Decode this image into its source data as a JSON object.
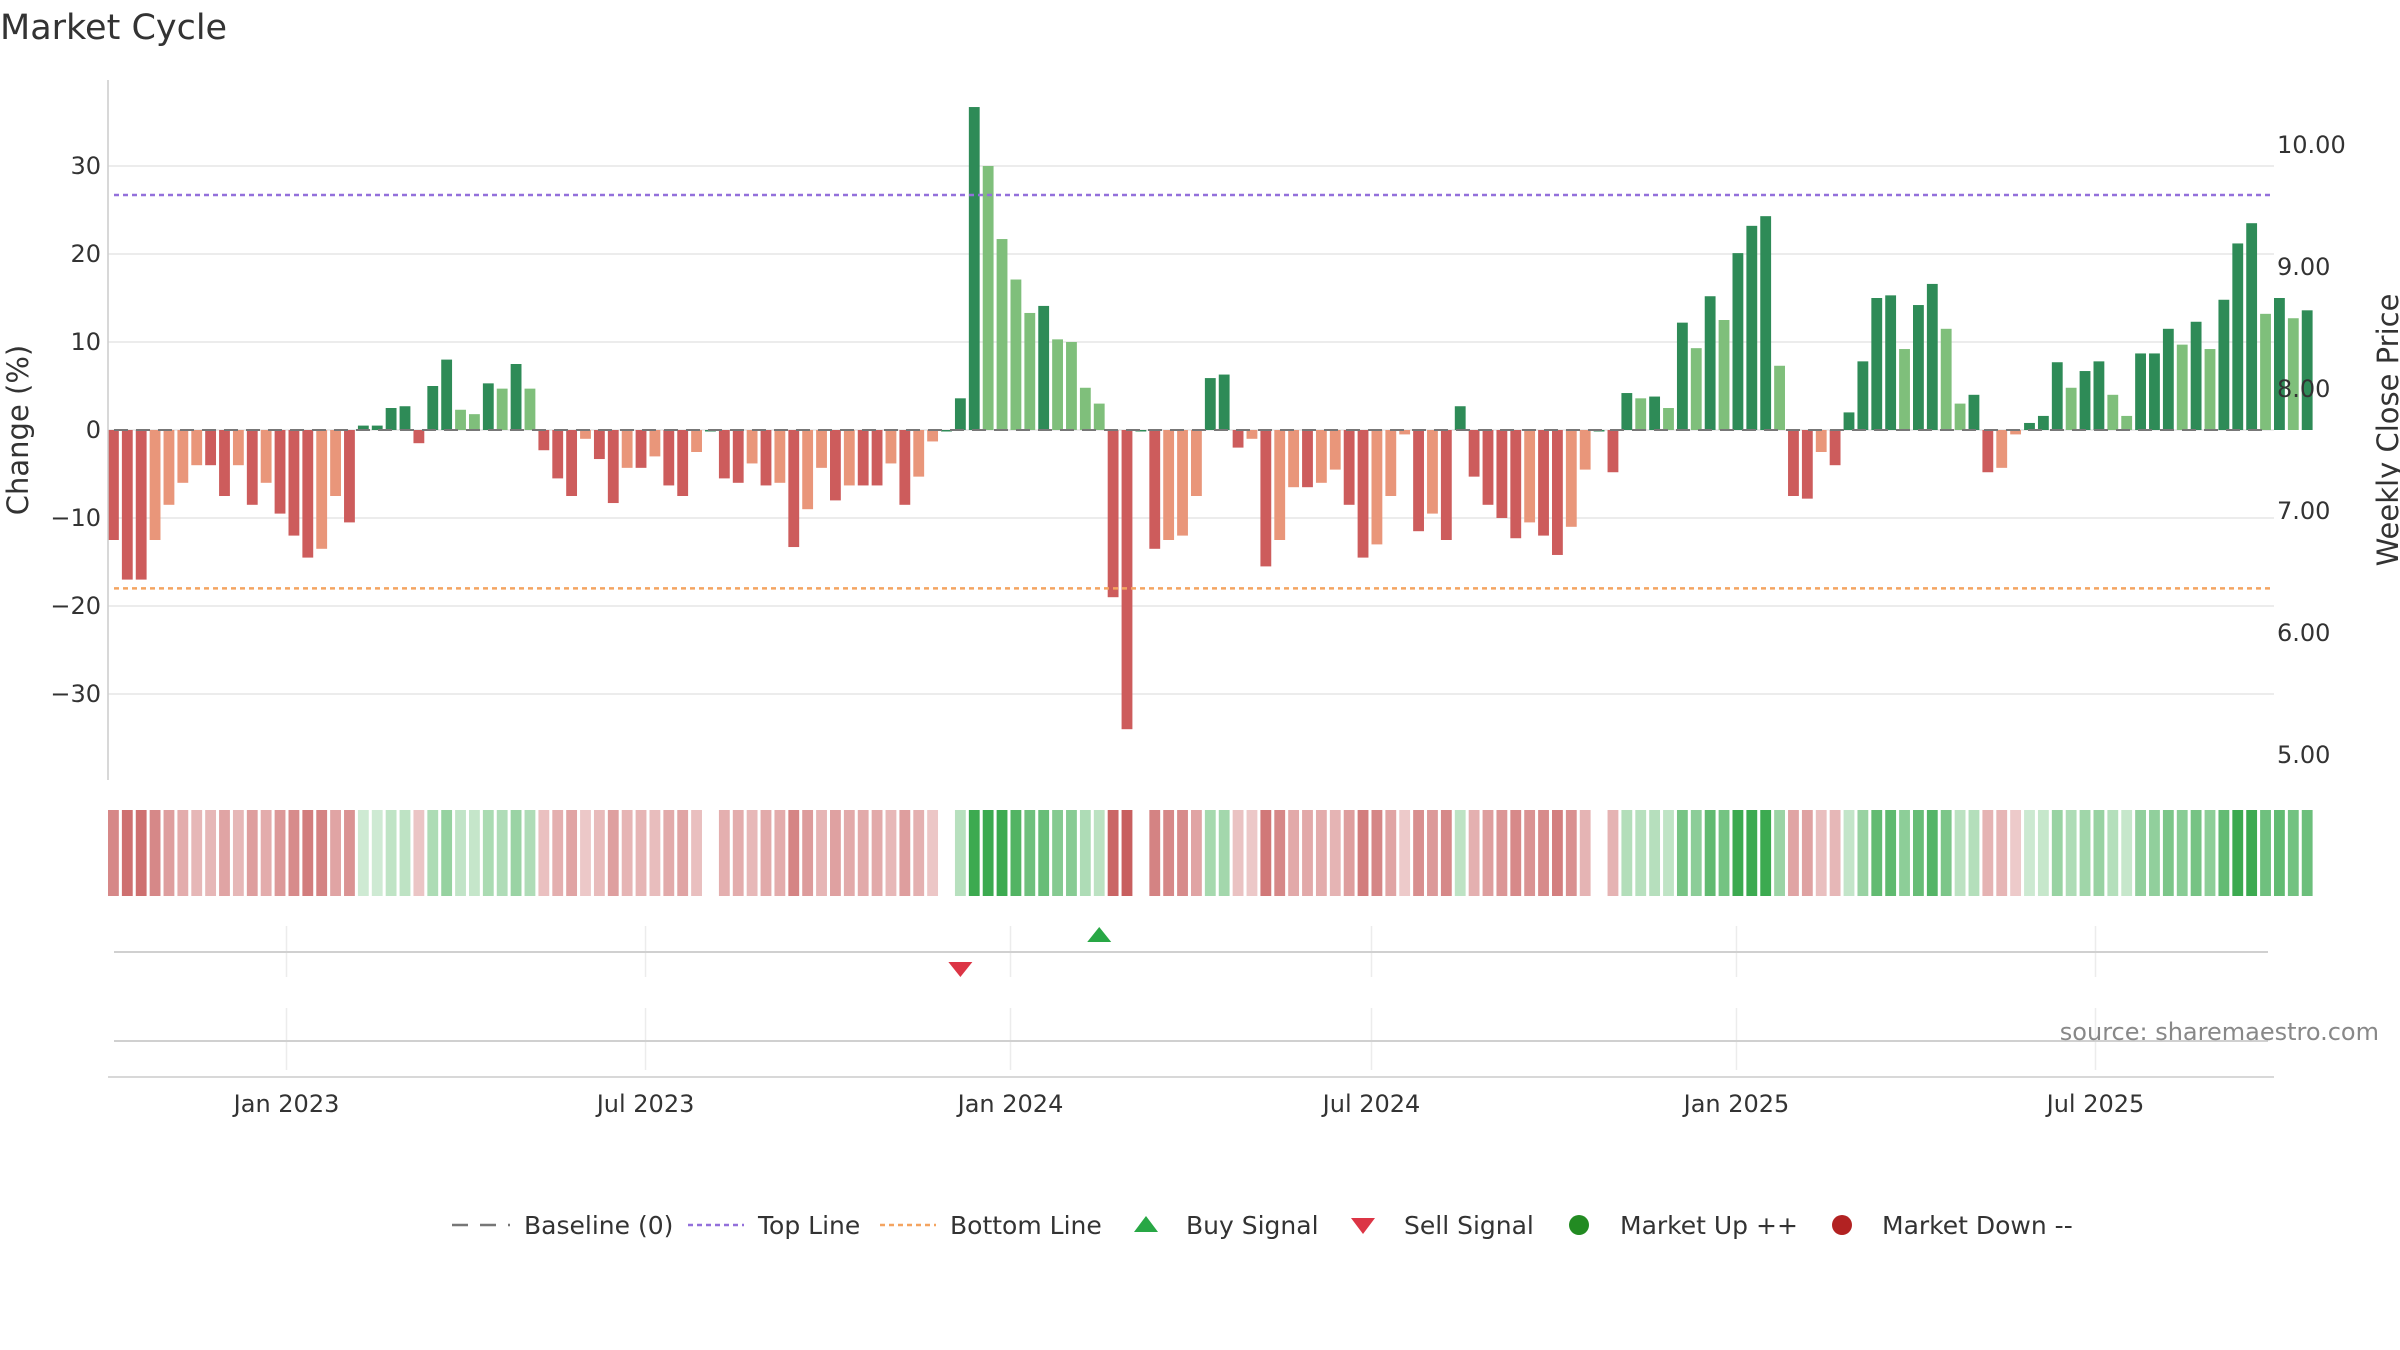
{
  "chart_data": {
    "type": "bar",
    "title": "Market Cycle",
    "ylabel": "Change (%)",
    "y2label": "Weekly Close Price",
    "ylim": [
      -40,
      40
    ],
    "y_ticks": [
      30,
      20,
      10,
      0,
      -10,
      -20,
      -30
    ],
    "y_tick_labels": [
      "30",
      "20",
      "10",
      "0",
      "−10",
      "−20",
      "−30"
    ],
    "y2lim": [
      4.6,
      10.35
    ],
    "y2_ticks": [
      10.0,
      9.0,
      8.0,
      7.0,
      6.0,
      5.0
    ],
    "y2_tick_labels": [
      "10.00",
      "9.00",
      "8.00",
      "7.00",
      "6.00",
      "5.00"
    ],
    "x_start": "2022-10-03",
    "x_end": "2025-09-29",
    "x_ticks": [
      {
        "date": "2023-01-01",
        "label": "Jan 2023"
      },
      {
        "date": "2023-07-01",
        "label": "Jul 2023"
      },
      {
        "date": "2024-01-01",
        "label": "Jan 2024"
      },
      {
        "date": "2024-07-01",
        "label": "Jul 2024"
      },
      {
        "date": "2025-01-01",
        "label": "Jan 2025"
      },
      {
        "date": "2025-07-01",
        "label": "Jul 2025"
      }
    ],
    "top_line": 26.7,
    "bottom_line": -18,
    "baseline": 0,
    "grid": true,
    "bar_week_start": "2022-10-03",
    "values": [
      -12.5,
      -17,
      -17,
      -12.5,
      -8.5,
      -6,
      -4,
      -4,
      -7.5,
      -4,
      -8.5,
      -6,
      -9.5,
      -12,
      -14.5,
      -13.5,
      -7.5,
      -10.5,
      0.5,
      0.5,
      2.5,
      2.7,
      -1.5,
      5,
      8,
      2.3,
      1.8,
      5.3,
      4.7,
      7.5,
      4.7,
      -2.3,
      -5.5,
      -7.5,
      -1,
      -3.3,
      -8.3,
      -4.3,
      -4.3,
      -3,
      -6.3,
      -7.5,
      -2.5,
      0,
      -5.5,
      -6,
      -3.8,
      -6.3,
      -6,
      -13.3,
      -9,
      -4.3,
      -8,
      -6.3,
      -6.3,
      -6.3,
      -3.8,
      -8.5,
      -5.3,
      -1.3,
      0,
      3.6,
      36.7,
      30,
      21.7,
      17.1,
      13.3,
      14.1,
      10.3,
      10,
      4.8,
      3,
      -19,
      -34,
      0,
      -13.5,
      -12.5,
      -12,
      -7.5,
      5.9,
      6.3,
      -2,
      -1,
      -15.5,
      -12.5,
      -6.5,
      -6.5,
      -6,
      -4.5,
      -8.5,
      -14.5,
      -13,
      -7.5,
      -0.5,
      -11.5,
      -9.5,
      -12.5,
      2.7,
      -5.3,
      -8.5,
      -10,
      -12.3,
      -10.5,
      -12,
      -14.2,
      -11,
      -4.5,
      0,
      -4.8,
      4.2,
      3.6,
      3.8,
      2.5,
      12.2,
      9.3,
      15.2,
      12.5,
      20.1,
      23.2,
      24.3,
      7.3,
      -7.5,
      -7.8,
      -2.5,
      -4,
      2,
      7.8,
      15,
      15.3,
      9.2,
      14.2,
      16.6,
      11.5,
      3,
      4,
      -4.8,
      -4.3,
      -0.5,
      0.8,
      1.6,
      7.7,
      4.8,
      6.7,
      7.8,
      4,
      1.6,
      8.7,
      8.7,
      11.5,
      9.7,
      12.3,
      9.2,
      14.8,
      21.2,
      23.5,
      13.2,
      15,
      12.7,
      13.6
    ],
    "sell_signal_week": 61,
    "buy_signal_week": 71,
    "legend": [
      "Baseline (0)",
      "Top Line",
      "Bottom Line",
      "Buy Signal",
      "Sell Signal",
      "Market Up ++",
      "Market Down --"
    ],
    "colors": {
      "strong_up": "#2e8b57",
      "weak_up": "#7fbf7b",
      "strong_down": "#cd5c5c",
      "weak_down": "#e9967a",
      "top_line": "#9370db",
      "bottom_line": "#f4a460",
      "buy": "#28a745",
      "sell": "#dc3545",
      "market_up": "#228b22",
      "market_down": "#b22222",
      "baseline": "#777777"
    }
  },
  "source": "source: sharemaestro.com"
}
